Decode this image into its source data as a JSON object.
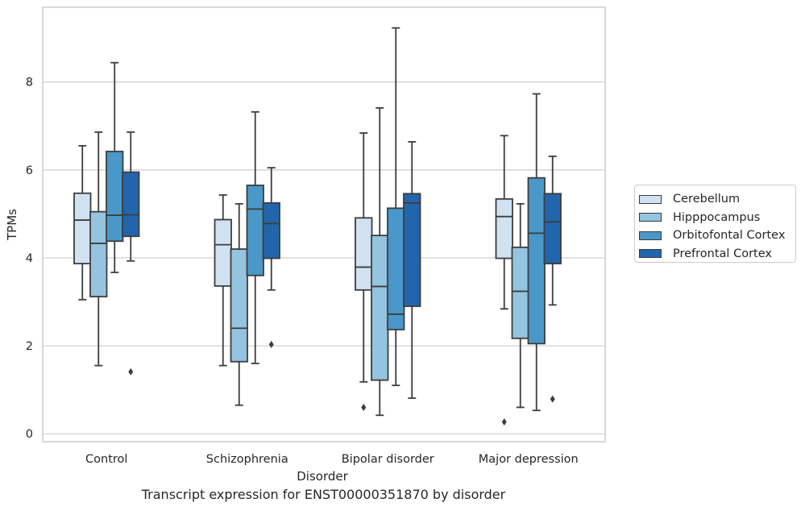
{
  "chart_data": {
    "type": "box",
    "title": "Transcript expression for ENST00000351870 by disorder",
    "xlabel": "Disorder",
    "ylabel": "TPMs",
    "categories": [
      "Control",
      "Schizophrenia",
      "Bipolar disorder",
      "Major depression"
    ],
    "yticks": [
      0,
      2,
      4,
      6,
      8
    ],
    "ylim": [
      -0.18,
      9.7
    ],
    "grid": "horizontal",
    "legend_position": "right",
    "series": [
      {
        "name": "Cerebellum",
        "color": "#d0e1f2",
        "boxes": [
          {
            "whislo": 3.05,
            "q1": 3.87,
            "med": 4.86,
            "q3": 5.47,
            "whishi": 6.55,
            "fliers": []
          },
          {
            "whislo": 1.55,
            "q1": 3.36,
            "med": 4.3,
            "q3": 4.87,
            "whishi": 5.43,
            "fliers": []
          },
          {
            "whislo": 1.18,
            "q1": 3.27,
            "med": 3.79,
            "q3": 4.91,
            "whishi": 6.84,
            "fliers": [
              0.6
            ]
          },
          {
            "whislo": 2.84,
            "q1": 3.99,
            "med": 4.94,
            "q3": 5.34,
            "whishi": 6.78,
            "fliers": [
              0.27
            ]
          }
        ]
      },
      {
        "name": "Hipppocampus",
        "color": "#94c4df",
        "boxes": [
          {
            "whislo": 1.55,
            "q1": 3.12,
            "med": 4.33,
            "q3": 5.05,
            "whishi": 6.86,
            "fliers": []
          },
          {
            "whislo": 0.65,
            "q1": 1.64,
            "med": 2.4,
            "q3": 4.2,
            "whishi": 5.23,
            "fliers": []
          },
          {
            "whislo": 0.42,
            "q1": 1.22,
            "med": 3.35,
            "q3": 4.51,
            "whishi": 7.41,
            "fliers": []
          },
          {
            "whislo": 0.6,
            "q1": 2.17,
            "med": 3.24,
            "q3": 4.24,
            "whishi": 5.23,
            "fliers": []
          }
        ]
      },
      {
        "name": "Orbitofontal Cortex",
        "color": "#4a98c9",
        "boxes": [
          {
            "whislo": 3.67,
            "q1": 4.38,
            "med": 4.97,
            "q3": 6.42,
            "whishi": 8.44,
            "fliers": []
          },
          {
            "whislo": 1.6,
            "q1": 3.6,
            "med": 5.11,
            "q3": 5.65,
            "whishi": 7.32,
            "fliers": []
          },
          {
            "whislo": 1.1,
            "q1": 2.37,
            "med": 2.72,
            "q3": 5.13,
            "whishi": 9.23,
            "fliers": []
          },
          {
            "whislo": 0.53,
            "q1": 2.05,
            "med": 4.56,
            "q3": 5.82,
            "whishi": 7.73,
            "fliers": []
          }
        ]
      },
      {
        "name": "Prefrontal Cortex",
        "color": "#2166ac",
        "boxes": [
          {
            "whislo": 3.93,
            "q1": 4.49,
            "med": 4.98,
            "q3": 5.95,
            "whishi": 6.86,
            "fliers": [
              1.41
            ]
          },
          {
            "whislo": 3.27,
            "q1": 3.99,
            "med": 4.78,
            "q3": 5.25,
            "whishi": 6.05,
            "fliers": [
              2.03
            ]
          },
          {
            "whislo": 0.81,
            "q1": 2.9,
            "med": 5.25,
            "q3": 5.46,
            "whishi": 6.64,
            "fliers": []
          },
          {
            "whislo": 2.93,
            "q1": 3.87,
            "med": 4.82,
            "q3": 5.46,
            "whishi": 6.31,
            "fliers": [
              0.79
            ]
          }
        ]
      }
    ]
  }
}
